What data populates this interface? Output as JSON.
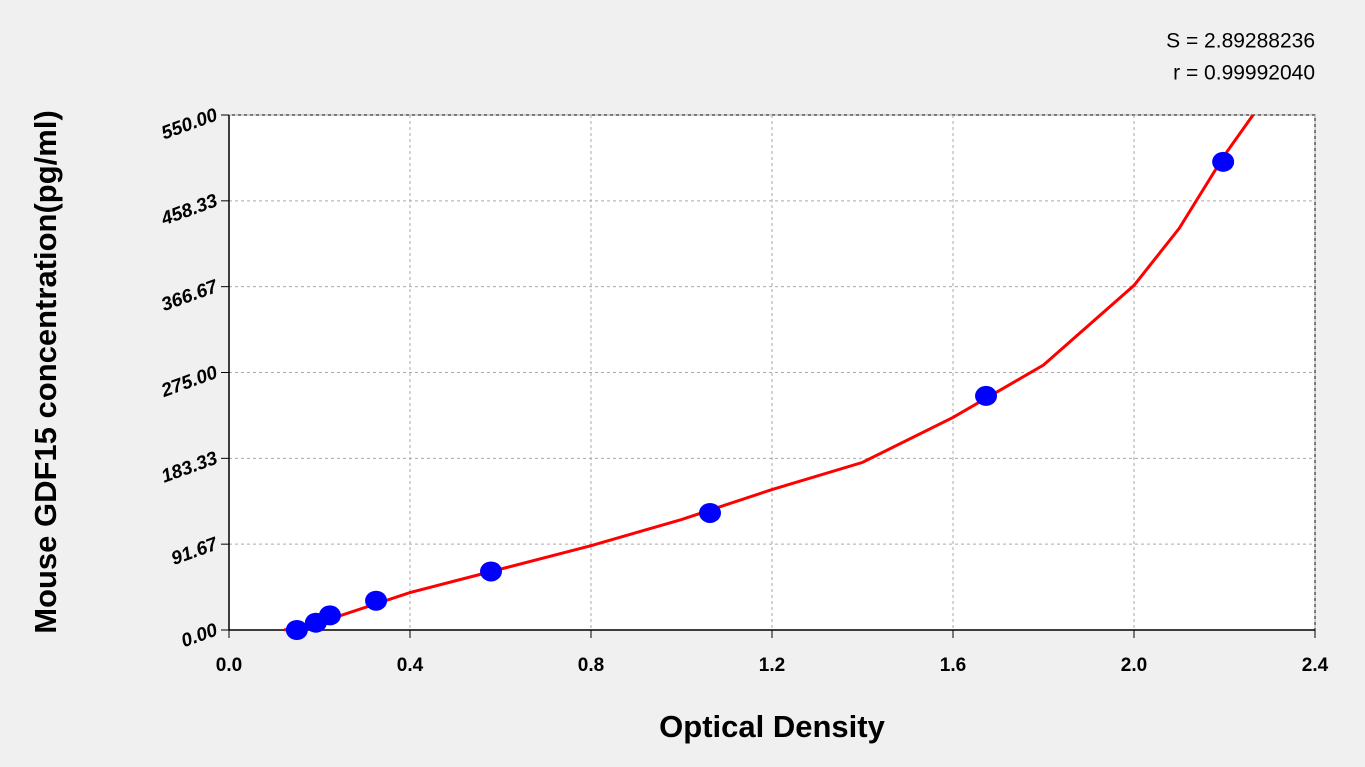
{
  "chart_data": {
    "type": "scatter",
    "xlabel": "Optical Density",
    "ylabel": "Mouse GDF15 concentration(pg/ml)",
    "annotations": [
      "S = 2.89288236",
      "r = 0.99992040"
    ],
    "xlim": [
      0,
      2.4
    ],
    "ylim": [
      0,
      550
    ],
    "xticks": [
      {
        "value": 0,
        "label": "0.0"
      },
      0.4,
      0.8,
      1.2,
      1.6,
      {
        "value": 2,
        "label": "2.0"
      },
      2.4
    ],
    "yticks": [
      {
        "value": 0,
        "label": "0.00"
      },
      91.67,
      183.33,
      {
        "value": 275,
        "label": "275.00"
      },
      366.67,
      458.33,
      {
        "value": 550,
        "label": "550.00"
      }
    ],
    "grid": true,
    "series": [
      {
        "color": "#0000ff",
        "x": [
          0.15,
          0.192,
          0.223,
          0.325,
          0.579,
          1.063,
          1.673,
          2.197
        ],
        "values": [
          0,
          7.8,
          15.6,
          31.25,
          62.5,
          125,
          250,
          500
        ]
      }
    ],
    "fit": {
      "color": "#ff0000",
      "x": [
        0.122,
        0.2,
        0.4,
        0.6,
        0.8,
        1.0,
        1.2,
        1.4,
        1.6,
        1.8,
        2.0,
        2.1,
        2.2,
        2.263
      ],
      "values": [
        0,
        8,
        40,
        65,
        90,
        118,
        150,
        179,
        227,
        283,
        368,
        429,
        507,
        550
      ]
    }
  }
}
